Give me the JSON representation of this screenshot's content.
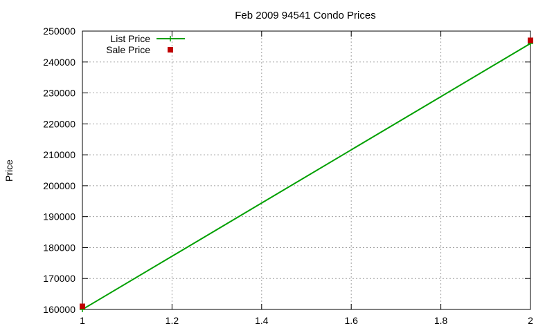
{
  "colors": {
    "list_price": "#00a000",
    "sale_price": "#c00000",
    "grid": "#a0a0a0",
    "axis": "#000000"
  },
  "chart_data": {
    "type": "line",
    "title": "Feb 2009 94541 Condo Prices",
    "xlabel": "",
    "ylabel": "Price",
    "xlim": [
      1,
      2
    ],
    "ylim": [
      160000,
      250000
    ],
    "x_ticks": [
      "1",
      "1.2",
      "1.4",
      "1.6",
      "1.8",
      "2"
    ],
    "y_ticks": [
      "160000",
      "170000",
      "180000",
      "190000",
      "200000",
      "210000",
      "220000",
      "230000",
      "240000",
      "250000"
    ],
    "grid": true,
    "legend_position": "top-left",
    "series": [
      {
        "name": "List Price",
        "style": "line-points",
        "color": "#00a000",
        "x": [
          1,
          2
        ],
        "y": [
          160000,
          246000
        ]
      },
      {
        "name": "Sale Price",
        "style": "points",
        "color": "#c00000",
        "x": [
          1,
          2
        ],
        "y": [
          161000,
          247000
        ]
      }
    ]
  }
}
